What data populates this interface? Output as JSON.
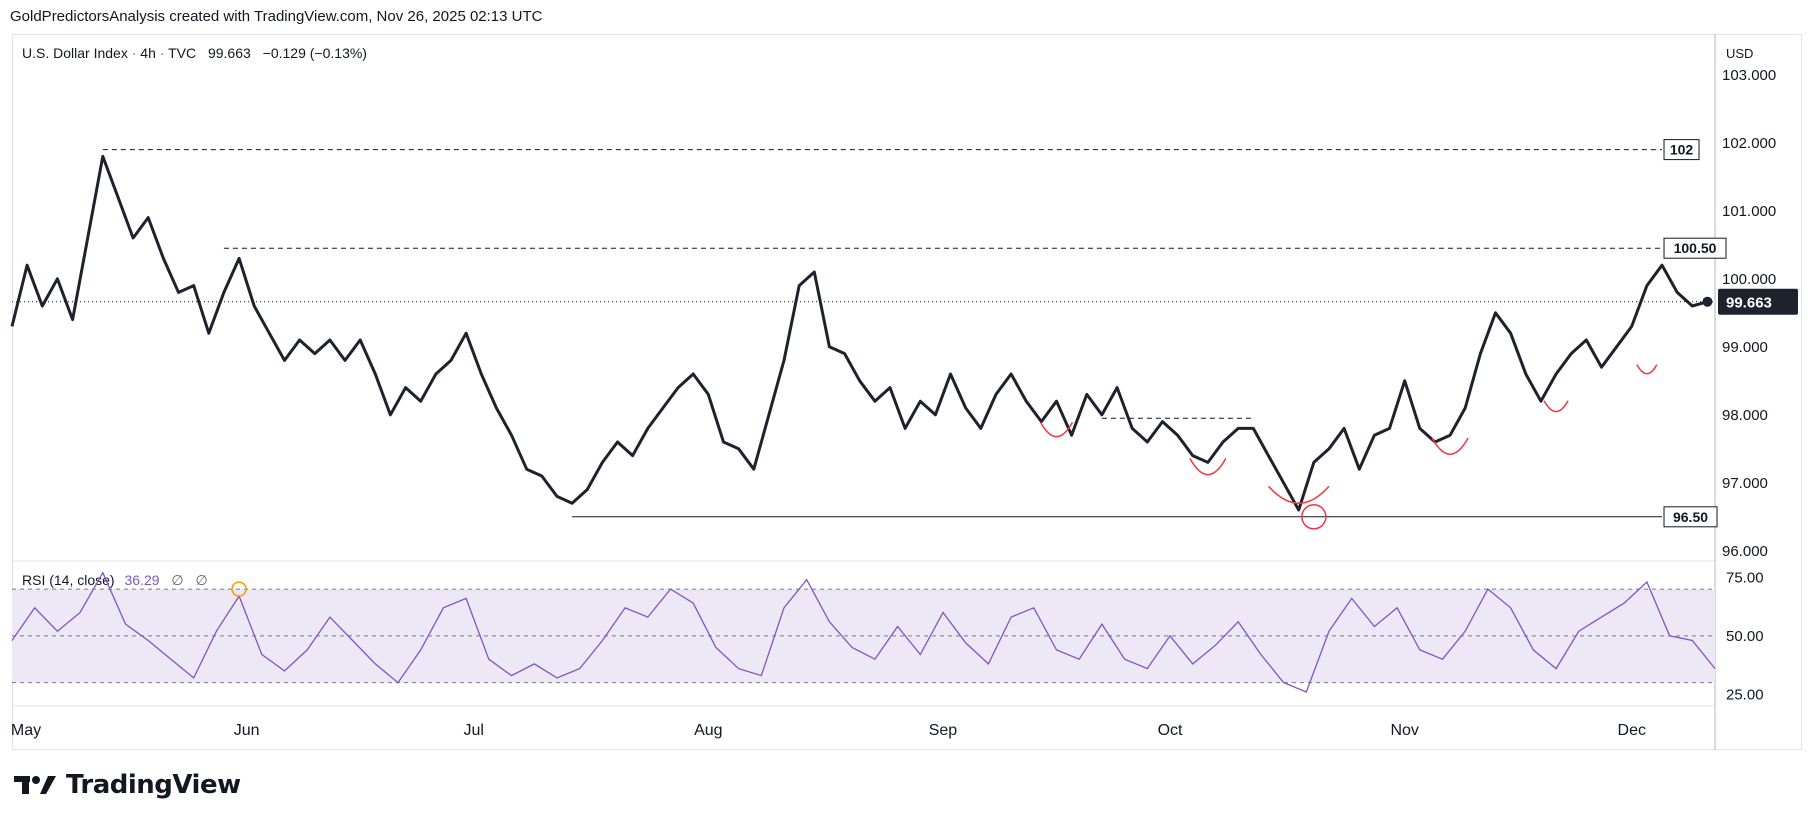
{
  "header": {
    "attribution": "GoldPredictorsAnalysis created with TradingView.com, Nov 26, 2025 02:13 UTC"
  },
  "legend": {
    "symbol": "U.S. Dollar Index",
    "interval": "4h",
    "source": "TVC",
    "price": "99.663",
    "change": "−0.129 (−0.13%)"
  },
  "currency_badge": "USD",
  "rsi_legend": {
    "title": "RSI (14, close)",
    "value": "36.29",
    "nan1": "∅",
    "nan2": "∅"
  },
  "brand": {
    "name": "TradingView"
  },
  "colors": {
    "price_line": "#1e222d",
    "rsi_line": "#7e57c2",
    "rsi_band": "#ede7f6",
    "annotation": "#f23645",
    "rsi_marker": "#ff9800",
    "grid": "#e0e3eb"
  },
  "chart_data": [
    {
      "type": "line",
      "title": "U.S. Dollar Index · 4h · TVC",
      "x_ticks": [
        "May",
        "Jun",
        "Jul",
        "Aug",
        "Sep",
        "Oct",
        "Nov",
        "Dec"
      ],
      "x_tick_dates": [
        "2025-05-01",
        "2025-06-01",
        "2025-07-01",
        "2025-08-01",
        "2025-09-01",
        "2025-10-01",
        "2025-11-01",
        "2025-12-01"
      ],
      "xlim": [
        "2025-05-01",
        "2025-12-12"
      ],
      "ylim": [
        95.85,
        103.6
      ],
      "y_ticks": [
        "96.000",
        "97.000",
        "98.000",
        "99.000",
        "100.000",
        "101.000",
        "102.000",
        "103.000"
      ],
      "series": [
        {
          "points": [
            [
              "2025-05-01",
              99.3
            ],
            [
              "2025-05-03",
              100.2
            ],
            [
              "2025-05-05",
              99.6
            ],
            [
              "2025-05-07",
              100.0
            ],
            [
              "2025-05-09",
              99.4
            ],
            [
              "2025-05-11",
              100.6
            ],
            [
              "2025-05-13",
              101.8
            ],
            [
              "2025-05-15",
              101.2
            ],
            [
              "2025-05-17",
              100.6
            ],
            [
              "2025-05-19",
              100.9
            ],
            [
              "2025-05-21",
              100.3
            ],
            [
              "2025-05-23",
              99.8
            ],
            [
              "2025-05-25",
              99.9
            ],
            [
              "2025-05-27",
              99.2
            ],
            [
              "2025-05-29",
              99.8
            ],
            [
              "2025-05-31",
              100.3
            ],
            [
              "2025-06-02",
              99.6
            ],
            [
              "2025-06-04",
              99.2
            ],
            [
              "2025-06-06",
              98.8
            ],
            [
              "2025-06-08",
              99.1
            ],
            [
              "2025-06-10",
              98.9
            ],
            [
              "2025-06-12",
              99.1
            ],
            [
              "2025-06-14",
              98.8
            ],
            [
              "2025-06-16",
              99.1
            ],
            [
              "2025-06-18",
              98.6
            ],
            [
              "2025-06-20",
              98.0
            ],
            [
              "2025-06-22",
              98.4
            ],
            [
              "2025-06-24",
              98.2
            ],
            [
              "2025-06-26",
              98.6
            ],
            [
              "2025-06-28",
              98.8
            ],
            [
              "2025-06-30",
              99.2
            ],
            [
              "2025-07-02",
              98.6
            ],
            [
              "2025-07-04",
              98.1
            ],
            [
              "2025-07-06",
              97.7
            ],
            [
              "2025-07-08",
              97.2
            ],
            [
              "2025-07-10",
              97.1
            ],
            [
              "2025-07-12",
              96.8
            ],
            [
              "2025-07-14",
              96.7
            ],
            [
              "2025-07-16",
              96.9
            ],
            [
              "2025-07-18",
              97.3
            ],
            [
              "2025-07-20",
              97.6
            ],
            [
              "2025-07-22",
              97.4
            ],
            [
              "2025-07-24",
              97.8
            ],
            [
              "2025-07-26",
              98.1
            ],
            [
              "2025-07-28",
              98.4
            ],
            [
              "2025-07-30",
              98.6
            ],
            [
              "2025-08-01",
              98.3
            ],
            [
              "2025-08-03",
              97.6
            ],
            [
              "2025-08-05",
              97.5
            ],
            [
              "2025-08-07",
              97.2
            ],
            [
              "2025-08-09",
              98.0
            ],
            [
              "2025-08-11",
              98.8
            ],
            [
              "2025-08-13",
              99.9
            ],
            [
              "2025-08-15",
              100.1
            ],
            [
              "2025-08-17",
              99.0
            ],
            [
              "2025-08-19",
              98.9
            ],
            [
              "2025-08-21",
              98.5
            ],
            [
              "2025-08-23",
              98.2
            ],
            [
              "2025-08-25",
              98.4
            ],
            [
              "2025-08-27",
              97.8
            ],
            [
              "2025-08-29",
              98.2
            ],
            [
              "2025-08-31",
              98.0
            ],
            [
              "2025-09-02",
              98.6
            ],
            [
              "2025-09-04",
              98.1
            ],
            [
              "2025-09-06",
              97.8
            ],
            [
              "2025-09-08",
              98.3
            ],
            [
              "2025-09-10",
              98.6
            ],
            [
              "2025-09-12",
              98.2
            ],
            [
              "2025-09-14",
              97.9
            ],
            [
              "2025-09-16",
              98.2
            ],
            [
              "2025-09-18",
              97.7
            ],
            [
              "2025-09-20",
              98.3
            ],
            [
              "2025-09-22",
              98.0
            ],
            [
              "2025-09-24",
              98.4
            ],
            [
              "2025-09-26",
              97.8
            ],
            [
              "2025-09-28",
              97.6
            ],
            [
              "2025-09-30",
              97.9
            ],
            [
              "2025-10-02",
              97.7
            ],
            [
              "2025-10-04",
              97.4
            ],
            [
              "2025-10-06",
              97.3
            ],
            [
              "2025-10-08",
              97.6
            ],
            [
              "2025-10-10",
              97.8
            ],
            [
              "2025-10-12",
              97.8
            ],
            [
              "2025-10-14",
              97.4
            ],
            [
              "2025-10-16",
              97.0
            ],
            [
              "2025-10-18",
              96.6
            ],
            [
              "2025-10-20",
              97.3
            ],
            [
              "2025-10-22",
              97.5
            ],
            [
              "2025-10-24",
              97.8
            ],
            [
              "2025-10-26",
              97.2
            ],
            [
              "2025-10-28",
              97.7
            ],
            [
              "2025-10-30",
              97.8
            ],
            [
              "2025-11-01",
              98.5
            ],
            [
              "2025-11-03",
              97.8
            ],
            [
              "2025-11-05",
              97.6
            ],
            [
              "2025-11-07",
              97.7
            ],
            [
              "2025-11-09",
              98.1
            ],
            [
              "2025-11-11",
              98.9
            ],
            [
              "2025-11-13",
              99.5
            ],
            [
              "2025-11-15",
              99.2
            ],
            [
              "2025-11-17",
              98.6
            ],
            [
              "2025-11-19",
              98.2
            ],
            [
              "2025-11-21",
              98.6
            ],
            [
              "2025-11-23",
              98.9
            ],
            [
              "2025-11-25",
              99.1
            ],
            [
              "2025-11-27",
              98.7
            ],
            [
              "2025-11-29",
              99.0
            ],
            [
              "2025-12-01",
              99.3
            ],
            [
              "2025-12-03",
              99.9
            ],
            [
              "2025-12-05",
              100.2
            ],
            [
              "2025-12-07",
              99.8
            ],
            [
              "2025-12-09",
              99.6
            ],
            [
              "2025-12-11",
              99.663
            ]
          ]
        }
      ],
      "levels": [
        {
          "label": "102",
          "value": 101.9
        },
        {
          "label": "100.50",
          "value": 100.45
        },
        {
          "label": "96.50",
          "value": 96.5
        }
      ],
      "last_price": 99.663,
      "last_price_label": "99.663"
    },
    {
      "type": "line",
      "title": "RSI (14, close)",
      "ylim": [
        20,
        82
      ],
      "y_ticks": [
        "25.00",
        "50.00",
        "75.00"
      ],
      "band": [
        30,
        70
      ],
      "series": [
        {
          "points": [
            [
              "2025-05-01",
              48
            ],
            [
              "2025-05-04",
              62
            ],
            [
              "2025-05-07",
              52
            ],
            [
              "2025-05-10",
              60
            ],
            [
              "2025-05-13",
              77
            ],
            [
              "2025-05-16",
              55
            ],
            [
              "2025-05-19",
              48
            ],
            [
              "2025-05-22",
              40
            ],
            [
              "2025-05-25",
              32
            ],
            [
              "2025-05-28",
              52
            ],
            [
              "2025-05-31",
              67
            ],
            [
              "2025-06-03",
              42
            ],
            [
              "2025-06-06",
              35
            ],
            [
              "2025-06-09",
              44
            ],
            [
              "2025-06-12",
              58
            ],
            [
              "2025-06-15",
              48
            ],
            [
              "2025-06-18",
              38
            ],
            [
              "2025-06-21",
              30
            ],
            [
              "2025-06-24",
              44
            ],
            [
              "2025-06-27",
              62
            ],
            [
              "2025-06-30",
              66
            ],
            [
              "2025-07-03",
              40
            ],
            [
              "2025-07-06",
              33
            ],
            [
              "2025-07-09",
              38
            ],
            [
              "2025-07-12",
              32
            ],
            [
              "2025-07-15",
              36
            ],
            [
              "2025-07-18",
              48
            ],
            [
              "2025-07-21",
              62
            ],
            [
              "2025-07-24",
              58
            ],
            [
              "2025-07-27",
              70
            ],
            [
              "2025-07-30",
              64
            ],
            [
              "2025-08-02",
              45
            ],
            [
              "2025-08-05",
              36
            ],
            [
              "2025-08-08",
              33
            ],
            [
              "2025-08-11",
              62
            ],
            [
              "2025-08-14",
              74
            ],
            [
              "2025-08-17",
              56
            ],
            [
              "2025-08-20",
              45
            ],
            [
              "2025-08-23",
              40
            ],
            [
              "2025-08-26",
              54
            ],
            [
              "2025-08-29",
              42
            ],
            [
              "2025-09-01",
              60
            ],
            [
              "2025-09-04",
              47
            ],
            [
              "2025-09-07",
              38
            ],
            [
              "2025-09-10",
              58
            ],
            [
              "2025-09-13",
              62
            ],
            [
              "2025-09-16",
              44
            ],
            [
              "2025-09-19",
              40
            ],
            [
              "2025-09-22",
              55
            ],
            [
              "2025-09-25",
              40
            ],
            [
              "2025-09-28",
              36
            ],
            [
              "2025-10-01",
              50
            ],
            [
              "2025-10-04",
              38
            ],
            [
              "2025-10-07",
              46
            ],
            [
              "2025-10-10",
              56
            ],
            [
              "2025-10-13",
              42
            ],
            [
              "2025-10-16",
              30
            ],
            [
              "2025-10-19",
              26
            ],
            [
              "2025-10-22",
              52
            ],
            [
              "2025-10-25",
              66
            ],
            [
              "2025-10-28",
              54
            ],
            [
              "2025-10-31",
              62
            ],
            [
              "2025-11-03",
              44
            ],
            [
              "2025-11-06",
              40
            ],
            [
              "2025-11-09",
              52
            ],
            [
              "2025-11-12",
              70
            ],
            [
              "2025-11-15",
              62
            ],
            [
              "2025-11-18",
              44
            ],
            [
              "2025-11-21",
              36
            ],
            [
              "2025-11-24",
              52
            ],
            [
              "2025-11-27",
              58
            ],
            [
              "2025-11-30",
              64
            ],
            [
              "2025-12-03",
              73
            ],
            [
              "2025-12-06",
              50
            ],
            [
              "2025-12-09",
              48
            ],
            [
              "2025-12-12",
              36
            ]
          ]
        }
      ]
    }
  ]
}
